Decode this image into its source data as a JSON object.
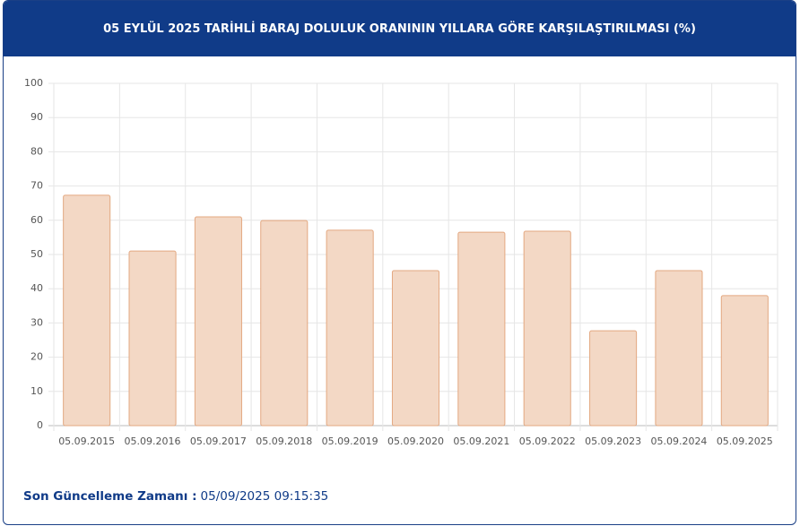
{
  "chart_data": {
    "type": "bar",
    "title": "05 EYLÜL 2025 TARİHLİ BARAJ DOLULUK ORANININ YILLARA GÖRE KARŞILAŞTIRILMASI (%)",
    "categories": [
      "05.09.2015",
      "05.09.2016",
      "05.09.2017",
      "05.09.2018",
      "05.09.2019",
      "05.09.2020",
      "05.09.2021",
      "05.09.2022",
      "05.09.2023",
      "05.09.2024",
      "05.09.2025"
    ],
    "values": [
      67.3,
      51.0,
      61.0,
      59.9,
      57.1,
      45.3,
      56.5,
      56.8,
      27.7,
      45.3,
      38.0
    ],
    "color": "#f3d8c5",
    "edge_color": "#e3a881",
    "ylim": [
      0,
      100
    ],
    "yticks": [
      0,
      10,
      20,
      30,
      40,
      50,
      60,
      70,
      80,
      90,
      100
    ],
    "grid": true
  },
  "footer": {
    "label": "Son Güncelleme Zamanı :",
    "value": "05/09/2025 09:15:35"
  }
}
